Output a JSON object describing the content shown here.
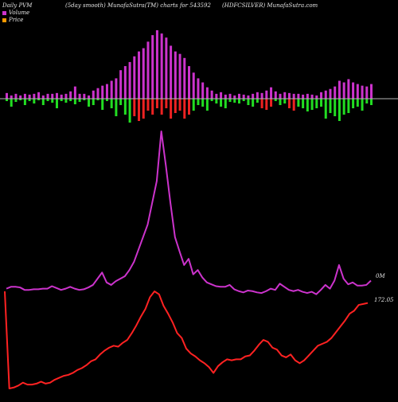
{
  "header": {
    "left": "Daily PVM",
    "center": "(5day smooth) MunafaSutra(TM) charts for 543592",
    "right": "(HDFCSILVER) MunafaSutra.com"
  },
  "legend": [
    {
      "label": "Volume",
      "color": "#cc33cc"
    },
    {
      "label": "Price",
      "color": "#ff9900"
    }
  ],
  "chart_data": {
    "type": "bar",
    "title": "",
    "colors": {
      "background": "#000000",
      "bar_up": "#cc33cc",
      "bar_down_green": "#22dd22",
      "bar_down_red": "#ee2222",
      "volume_line": "#cc33cc",
      "price_line": "#ff2222",
      "axis": "#b3b3b3"
    },
    "pvm_bars": {
      "up": [
        7,
        4,
        6,
        4,
        6,
        5,
        6,
        8,
        4,
        6,
        6,
        7,
        5,
        6,
        9,
        15,
        6,
        6,
        4,
        10,
        13,
        16,
        18,
        22,
        25,
        35,
        40,
        45,
        52,
        58,
        62,
        70,
        78,
        84,
        80,
        75,
        65,
        58,
        55,
        50,
        40,
        32,
        25,
        20,
        14,
        10,
        6,
        8,
        5,
        6,
        4,
        6,
        5,
        4,
        6,
        8,
        7,
        10,
        14,
        9,
        6,
        8,
        7,
        6,
        6,
        5,
        6,
        5,
        4,
        8,
        10,
        12,
        15,
        22,
        20,
        24,
        20,
        18,
        16,
        15,
        18
      ],
      "down": [
        3,
        10,
        4,
        2,
        8,
        3,
        6,
        2,
        8,
        3,
        5,
        12,
        3,
        5,
        3,
        7,
        4,
        2,
        10,
        8,
        2,
        14,
        3,
        12,
        22,
        8,
        20,
        30,
        22,
        28,
        25,
        15,
        20,
        12,
        20,
        12,
        25,
        18,
        15,
        25,
        20,
        15,
        8,
        10,
        15,
        3,
        6,
        10,
        12,
        4,
        5,
        6,
        3,
        8,
        10,
        5,
        12,
        14,
        10,
        3,
        8,
        6,
        12,
        15,
        10,
        12,
        16,
        14,
        12,
        10,
        25,
        18,
        22,
        28,
        20,
        18,
        12,
        10,
        15,
        6,
        8
      ],
      "down_color": [
        "g",
        "g",
        "g",
        "g",
        "g",
        "g",
        "g",
        "g",
        "g",
        "g",
        "g",
        "g",
        "g",
        "g",
        "g",
        "g",
        "g",
        "g",
        "g",
        "g",
        "g",
        "g",
        "g",
        "g",
        "g",
        "g",
        "g",
        "g",
        "r",
        "r",
        "r",
        "r",
        "r",
        "r",
        "r",
        "r",
        "r",
        "r",
        "r",
        "r",
        "r",
        "g",
        "g",
        "g",
        "g",
        "g",
        "g",
        "g",
        "g",
        "g",
        "g",
        "g",
        "g",
        "g",
        "g",
        "g",
        "r",
        "r",
        "r",
        "g",
        "g",
        "g",
        "r",
        "r",
        "g",
        "g",
        "g",
        "g",
        "g",
        "g",
        "g",
        "g",
        "g",
        "g",
        "g",
        "g",
        "g",
        "g",
        "g",
        "g",
        "g"
      ]
    },
    "volume_series": {
      "name": "Volume",
      "end_label": "0M",
      "values": [
        12,
        15,
        15,
        14,
        10,
        10,
        11,
        11,
        12,
        12,
        16,
        13,
        10,
        12,
        15,
        12,
        10,
        11,
        14,
        18,
        28,
        38,
        22,
        18,
        24,
        28,
        32,
        42,
        55,
        75,
        95,
        115,
        150,
        185,
        265,
        210,
        150,
        95,
        72,
        50,
        60,
        35,
        42,
        30,
        22,
        19,
        16,
        15,
        15,
        18,
        11,
        8,
        6,
        9,
        8,
        6,
        5,
        8,
        12,
        10,
        20,
        15,
        10,
        8,
        10,
        7,
        5,
        7,
        3,
        10,
        18,
        12,
        25,
        50,
        28,
        19,
        22,
        17,
        17,
        18,
        25
      ]
    },
    "price_series": {
      "name": "Price",
      "end_label": "172.05",
      "values": [
        100,
        0,
        1,
        3,
        6,
        4,
        4,
        5,
        7,
        5,
        6,
        9,
        11,
        13,
        14,
        16,
        19,
        21,
        24,
        28,
        30,
        35,
        39,
        42,
        44,
        43,
        47,
        50,
        57,
        65,
        74,
        82,
        94,
        100,
        97,
        85,
        77,
        68,
        57,
        52,
        41,
        36,
        33,
        29,
        26,
        22,
        16,
        23,
        27,
        30,
        29,
        30,
        30,
        33,
        34,
        39,
        45,
        50,
        48,
        42,
        40,
        34,
        32,
        35,
        29,
        26,
        29,
        34,
        39,
        44,
        46,
        48,
        52,
        58,
        64,
        70,
        77,
        80,
        86,
        87,
        88
      ]
    }
  }
}
